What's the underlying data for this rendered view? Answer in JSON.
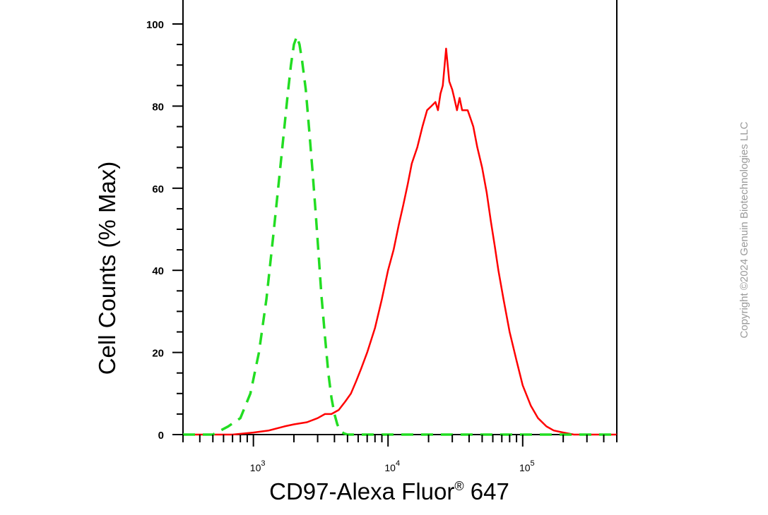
{
  "copyright": "Copyright ©2024 Genuin Biotechnologies LLC",
  "chart_data": {
    "type": "line",
    "xlabel": "CD97-Alexa Fluor",
    "xlabel_superscript": "®",
    "xlabel_suffix": " 647",
    "ylabel": "Cell Counts (% Max)",
    "x_scale": "log",
    "xlim": [
      300,
      500000
    ],
    "ylim": [
      0,
      103
    ],
    "yticks": [
      "0",
      "20",
      "40",
      "60",
      "80",
      "100"
    ],
    "xticks": [
      {
        "base": "10",
        "exp": "3"
      },
      {
        "base": "10",
        "exp": "4"
      },
      {
        "base": "10",
        "exp": "5"
      }
    ],
    "grid": false,
    "legend": "none",
    "series": [
      {
        "color": "#ff0000",
        "style": "solid",
        "x": [
          300,
          700,
          1000,
          1300,
          1700,
          2000,
          2500,
          3000,
          3400,
          3800,
          4300,
          4800,
          5300,
          5800,
          6300,
          7000,
          8000,
          9000,
          10000,
          11000,
          12000,
          13000,
          14000,
          15000,
          16500,
          18000,
          19500,
          21000,
          22500,
          23500,
          24500,
          25500,
          27000,
          28500,
          30000,
          31000,
          32500,
          34000,
          35500,
          37000,
          39000,
          41000,
          43000,
          46000,
          50000,
          54000,
          58000,
          62000,
          66000,
          72000,
          80000,
          90000,
          100000,
          115000,
          130000,
          150000,
          170000,
          200000,
          240000,
          300000,
          400000,
          500000
        ],
        "y": [
          0,
          0,
          0.5,
          1,
          2,
          2.5,
          3,
          4,
          5,
          5,
          6,
          8,
          10,
          13,
          16,
          20,
          26,
          33,
          40,
          45,
          51,
          56,
          61,
          66,
          70,
          75,
          79,
          80,
          81,
          79,
          83,
          85,
          94,
          86,
          84,
          82,
          79,
          82,
          79,
          79,
          79,
          77,
          75,
          70,
          65,
          59,
          52,
          46,
          40,
          33,
          25,
          18,
          12,
          7,
          4,
          2,
          1,
          0.5,
          0,
          0,
          0,
          0
        ]
      },
      {
        "color": "#22dd22",
        "style": "dashed",
        "x": [
          300,
          500,
          650,
          800,
          950,
          1100,
          1250,
          1400,
          1550,
          1700,
          1800,
          1900,
          2000,
          2100,
          2200,
          2300,
          2450,
          2600,
          2750,
          2900,
          3050,
          3200,
          3400,
          3600,
          3800,
          4000,
          4200,
          4400,
          4700,
          5000,
          6000,
          10000,
          100000,
          500000
        ],
        "y": [
          0,
          0,
          2,
          4,
          10,
          20,
          33,
          48,
          62,
          75,
          83,
          90,
          95,
          97,
          95,
          91,
          84,
          74,
          64,
          54,
          44,
          34,
          24,
          15,
          9,
          5,
          2.5,
          1,
          0.3,
          0,
          0,
          0,
          0,
          0
        ]
      }
    ]
  }
}
